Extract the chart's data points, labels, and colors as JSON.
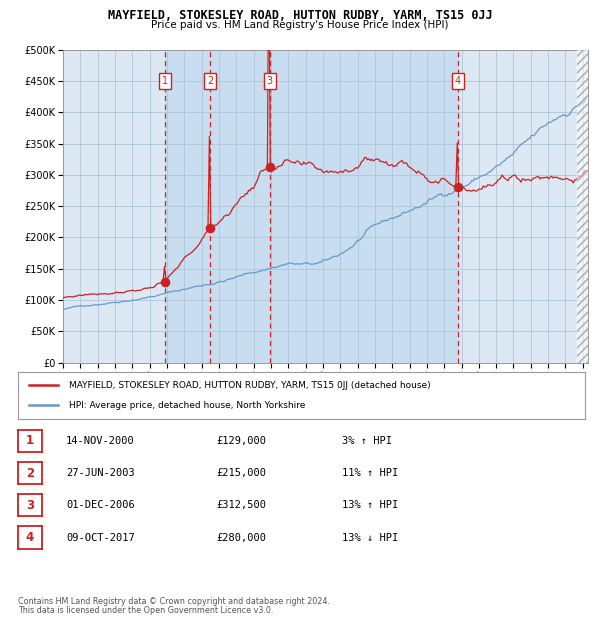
{
  "title": "MAYFIELD, STOKESLEY ROAD, HUTTON RUDBY, YARM, TS15 0JJ",
  "subtitle": "Price paid vs. HM Land Registry's House Price Index (HPI)",
  "legend_red": "MAYFIELD, STOKESLEY ROAD, HUTTON RUDBY, YARM, TS15 0JJ (detached house)",
  "legend_blue": "HPI: Average price, detached house, North Yorkshire",
  "footer1": "Contains HM Land Registry data © Crown copyright and database right 2024.",
  "footer2": "This data is licensed under the Open Government Licence v3.0.",
  "transactions": [
    {
      "num": 1,
      "date": "14-NOV-2000",
      "price": 129000,
      "pct": "3%",
      "dir": "↑"
    },
    {
      "num": 2,
      "date": "27-JUN-2003",
      "price": 215000,
      "pct": "11%",
      "dir": "↑"
    },
    {
      "num": 3,
      "date": "01-DEC-2006",
      "price": 312500,
      "pct": "13%",
      "dir": "↑"
    },
    {
      "num": 4,
      "date": "09-OCT-2017",
      "price": 280000,
      "pct": "13%",
      "dir": "↓"
    }
  ],
  "sale_years": [
    2000.87,
    2003.49,
    2006.92,
    2017.77
  ],
  "sale_prices": [
    129000,
    215000,
    312500,
    280000
  ],
  "ylim": [
    0,
    500000
  ],
  "yticks": [
    0,
    50000,
    100000,
    150000,
    200000,
    250000,
    300000,
    350000,
    400000,
    450000,
    500000
  ],
  "hpi_color": "#6699cc",
  "red_color": "#cc2222",
  "bg_color": "#dce9f5",
  "shade_color": "#c8ddf0",
  "grid_color": "#b0c4d8",
  "footnote_color": "#555555",
  "hatch_color": "#cccccc"
}
